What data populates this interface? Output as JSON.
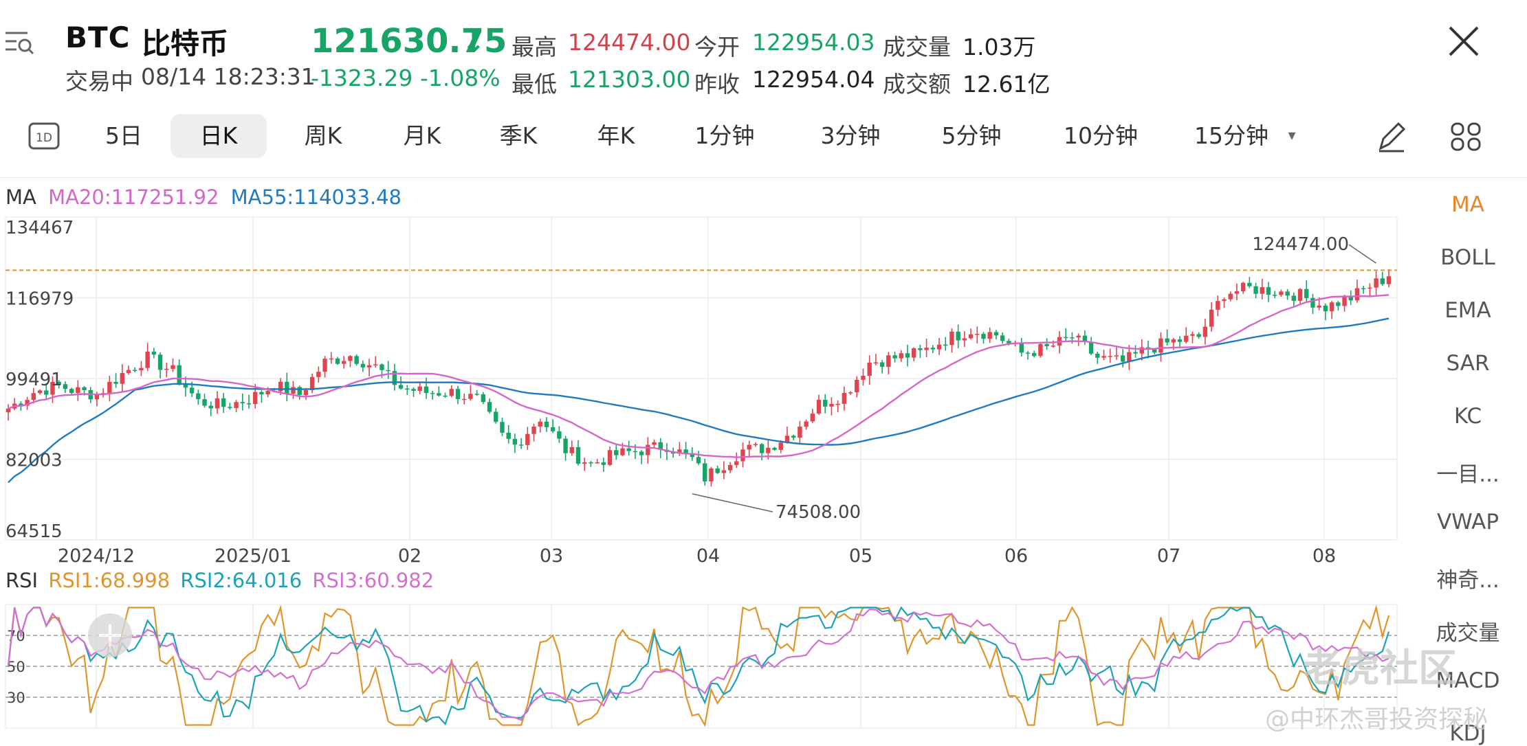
{
  "header": {
    "symbol": "BTC",
    "name_cn": "比特币",
    "status": "交易中",
    "datetime": "08/14 18:23:31",
    "price": "121630.75",
    "change": "-1323.29",
    "change_pct": "-1.08%",
    "stats": {
      "high_label": "最高",
      "high": "124474.00",
      "low_label": "最低",
      "low": "121303.00",
      "open_label": "今开",
      "open": "122954.03",
      "prev_close_label": "昨收",
      "prev_close": "122954.04",
      "volume_label": "成交量",
      "volume": "1.03万",
      "turnover_label": "成交额",
      "turnover": "12.61亿"
    }
  },
  "tabs": [
    {
      "label": "5日"
    },
    {
      "label": "日K"
    },
    {
      "label": "周K"
    },
    {
      "label": "月K"
    },
    {
      "label": "季K"
    },
    {
      "label": "年K"
    },
    {
      "label": "1分钟"
    },
    {
      "label": "3分钟"
    },
    {
      "label": "5分钟"
    },
    {
      "label": "10分钟"
    },
    {
      "label": "15分钟"
    }
  ],
  "active_tab": "日K",
  "tab_1d_icon_label": "1D",
  "indicators_side": [
    "MA",
    "BOLL",
    "EMA",
    "SAR",
    "KC",
    "一目...",
    "VWAP",
    "神奇...",
    "成交量",
    "MACD",
    "KDJ"
  ],
  "active_indicator": "MA",
  "ma_legend": {
    "title": "MA",
    "ma20": "MA20:117251.92",
    "ma55": "MA55:114033.48"
  },
  "rsi_legend": {
    "title": "RSI",
    "rsi1": "RSI1:68.998",
    "rsi2": "RSI2:64.016",
    "rsi3": "RSI3:60.982"
  },
  "colors": {
    "up": "#e0454f",
    "down": "#17a567",
    "ma20": "#d665c9",
    "ma55": "#1f7ac4",
    "rsi1": "#e0952b",
    "rsi2": "#1aa3b8",
    "rsi3": "#d46fd0",
    "ref_line": "#e0952b"
  },
  "chart_data": [
    {
      "type": "candlestick",
      "y_ticks": [
        "134467",
        "116979",
        "99491",
        "82003",
        "64515"
      ],
      "ylim": [
        64515,
        134467
      ],
      "x_labels": [
        "2024/12",
        "2025/01",
        "02",
        "03",
        "04",
        "05",
        "06",
        "07",
        "08"
      ],
      "annotations": {
        "high": "124474.00",
        "low": "74508.00"
      },
      "ma_series": [
        {
          "name": "MA20",
          "last": "117251.92"
        },
        {
          "name": "MA55",
          "last": "114033.48"
        }
      ],
      "close_path": [
        [
          0,
          93000
        ],
        [
          4,
          96500
        ],
        [
          8,
          98000
        ],
        [
          10,
          97000
        ],
        [
          14,
          96000
        ],
        [
          18,
          100500
        ],
        [
          22,
          104000
        ],
        [
          26,
          101000
        ],
        [
          30,
          94500
        ],
        [
          34,
          93500
        ],
        [
          38,
          95000
        ],
        [
          42,
          98000
        ],
        [
          46,
          96000
        ],
        [
          50,
          103000
        ],
        [
          54,
          104500
        ],
        [
          58,
          102000
        ],
        [
          62,
          97500
        ],
        [
          66,
          96500
        ],
        [
          70,
          96500
        ],
        [
          74,
          95000
        ],
        [
          78,
          87000
        ],
        [
          80,
          85000
        ],
        [
          84,
          91000
        ],
        [
          88,
          84000
        ],
        [
          92,
          81000
        ],
        [
          96,
          83000
        ],
        [
          100,
          84000
        ],
        [
          104,
          85000
        ],
        [
          108,
          82000
        ],
        [
          110,
          78000
        ],
        [
          112,
          80000
        ],
        [
          116,
          84000
        ],
        [
          120,
          84500
        ],
        [
          124,
          88000
        ],
        [
          128,
          94000
        ],
        [
          132,
          96000
        ],
        [
          136,
          103000
        ],
        [
          140,
          104000
        ],
        [
          144,
          105000
        ],
        [
          148,
          108000
        ],
        [
          152,
          110000
        ],
        [
          156,
          109000
        ],
        [
          160,
          105000
        ],
        [
          164,
          106000
        ],
        [
          168,
          108500
        ],
        [
          172,
          104000
        ],
        [
          176,
          103000
        ],
        [
          180,
          106000
        ],
        [
          184,
          107500
        ],
        [
          188,
          108500
        ],
        [
          192,
          118000
        ],
        [
          196,
          119000
        ],
        [
          200,
          118500
        ],
        [
          204,
          117500
        ],
        [
          208,
          115000
        ],
        [
          212,
          117000
        ],
        [
          215,
          119500
        ],
        [
          218,
          121600
        ]
      ]
    },
    {
      "type": "line",
      "title": "RSI",
      "y_ticks": [
        "70",
        "50",
        "30"
      ],
      "ylim": [
        10,
        90
      ],
      "series": [
        {
          "name": "RSI1",
          "last": 68.998
        },
        {
          "name": "RSI2",
          "last": 64.016
        },
        {
          "name": "RSI3",
          "last": 60.982
        }
      ]
    }
  ],
  "watermark": {
    "logo_text": "老虎社区",
    "author": "@中环杰哥投资探秘"
  }
}
